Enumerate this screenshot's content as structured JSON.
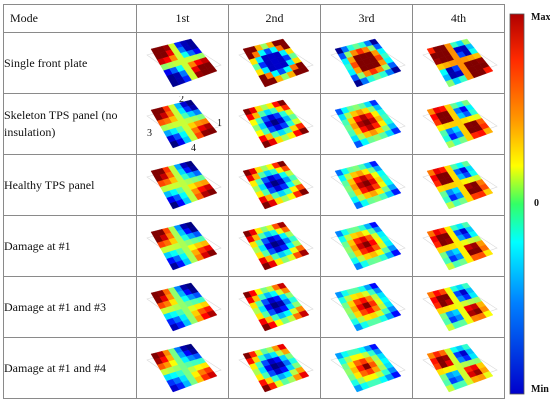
{
  "table": {
    "mode_header": "Mode",
    "columns": [
      "1st",
      "2nd",
      "3rd",
      "4th"
    ],
    "rows": [
      {
        "label": "Single front plate"
      },
      {
        "label": "Skeleton TPS panel (no insulation)"
      },
      {
        "label": "Healthy TPS panel"
      },
      {
        "label": "Damage at #1"
      },
      {
        "label": "Damage at #1 and #3"
      },
      {
        "label": "Damage at #1 and #4"
      }
    ],
    "corner_markers": [
      "2",
      "1",
      "3",
      "4"
    ]
  },
  "colorbar": {
    "max_label": "Max",
    "zero_label": "0",
    "min_label": "Min",
    "colors": [
      "#b00000",
      "#ff2a00",
      "#ff9900",
      "#ffff00",
      "#33ff66",
      "#00ffff",
      "#0080ff",
      "#0000cc"
    ]
  }
}
